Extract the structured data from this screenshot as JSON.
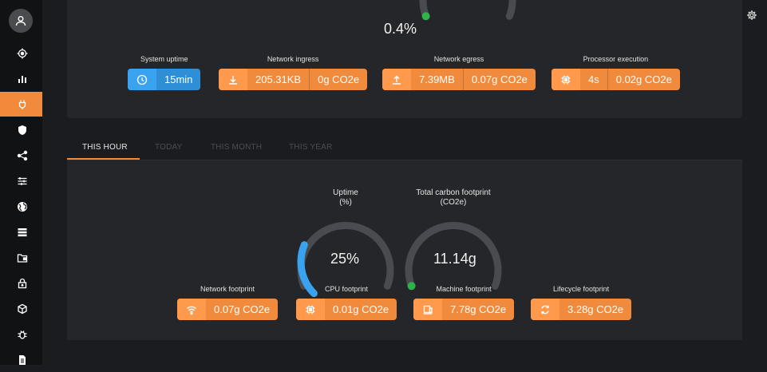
{
  "sidebar": {
    "icons": [
      "user-icon",
      "target-icon",
      "bar-chart-icon",
      "plug-icon",
      "shield-icon",
      "share-icon",
      "sliders-icon",
      "globe-icon",
      "storage-icon",
      "folder-icon",
      "lock-icon",
      "cube-icon",
      "bug-icon",
      "document-icon"
    ],
    "active": "plug-icon"
  },
  "top": {
    "cpu_gauge_value": "0.4%",
    "cpu_gauge_fraction": 0.004,
    "stats": [
      {
        "label": "System uptime",
        "values": [
          "15min"
        ],
        "icon": "clock-icon",
        "color": "blue"
      },
      {
        "label": "Network ingress",
        "values": [
          "205.31KB",
          "0g CO2e"
        ],
        "icon": "download-icon",
        "color": "orange"
      },
      {
        "label": "Network egress",
        "values": [
          "7.39MB",
          "0.07g CO2e"
        ],
        "icon": "upload-icon",
        "color": "orange"
      },
      {
        "label": "Processor execution",
        "values": [
          "4s",
          "0.02g CO2e"
        ],
        "icon": "chip-icon",
        "color": "orange"
      }
    ]
  },
  "tabs": [
    "THIS HOUR",
    "TODAY",
    "THIS MONTH",
    "THIS YEAR"
  ],
  "active_tab": "THIS HOUR",
  "hour": {
    "uptime": {
      "label1": "Uptime",
      "label2": "(%)",
      "value": "25%",
      "fraction": 0.25
    },
    "carbon": {
      "label1": "Total carbon footprint",
      "label2": "(CO2e)",
      "value": "11.14g",
      "fraction": 0
    },
    "footprints": [
      {
        "label": "Network footprint",
        "value": "0.07g CO2e",
        "icon": "wifi-icon"
      },
      {
        "label": "CPU footprint",
        "value": "0.01g CO2e",
        "icon": "chip-icon"
      },
      {
        "label": "Machine footprint",
        "value": "7.78g CO2e",
        "icon": "laptop-icon"
      },
      {
        "label": "Lifecycle footprint",
        "value": "3.28g CO2e",
        "icon": "recycle-icon"
      }
    ]
  },
  "colors": {
    "accent": "#f28a3c",
    "blue": "#3aa3f0",
    "green": "#2db34a",
    "track": "#4a4b50"
  }
}
